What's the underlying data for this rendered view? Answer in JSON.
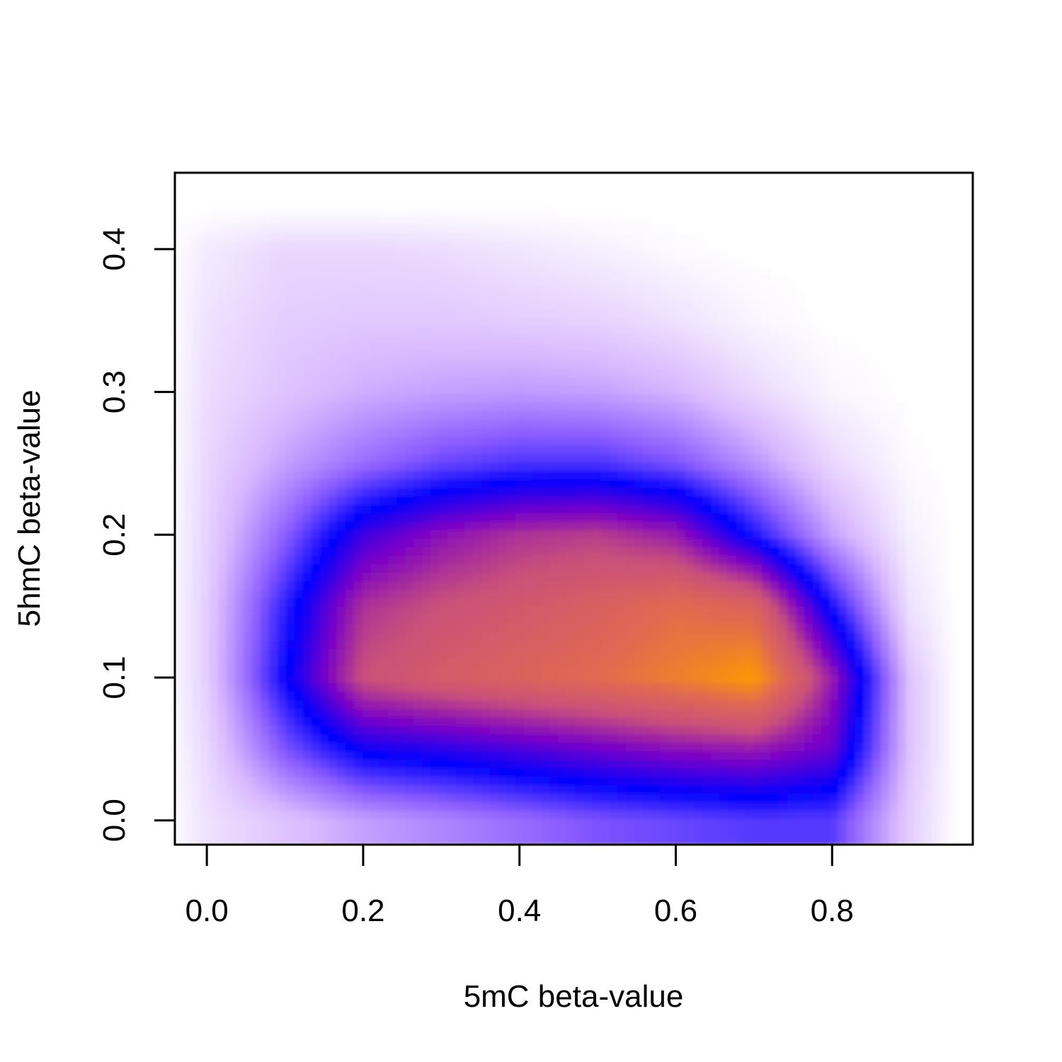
{
  "chart_data": {
    "type": "heatmap",
    "subtype": "2D density (smoothScatter)",
    "title": "",
    "xlabel": "5mC beta-value",
    "ylabel": "5hmC beta-value",
    "xlim": [
      -0.04,
      0.98
    ],
    "ylim": [
      -0.017,
      0.453
    ],
    "x_ticks": [
      0.0,
      0.2,
      0.4,
      0.6,
      0.8
    ],
    "x_tick_labels": [
      "0.0",
      "0.2",
      "0.4",
      "0.6",
      "0.8"
    ],
    "y_ticks": [
      0.0,
      0.1,
      0.2,
      0.3,
      0.4
    ],
    "y_tick_labels": [
      "0.0",
      "0.1",
      "0.2",
      "0.3",
      "0.4"
    ],
    "grid": false,
    "legend": "none",
    "colormap": [
      "#ffffff",
      "#d8b8ff",
      "#8a5cff",
      "#0000ff",
      "#7a00c8",
      "#c9507a",
      "#e06a50",
      "#ff9900"
    ],
    "density_peak": {
      "x": 0.67,
      "y": 0.12
    },
    "density_grid": {
      "x": [
        0.0,
        0.1,
        0.2,
        0.3,
        0.4,
        0.5,
        0.6,
        0.7,
        0.8,
        0.9
      ],
      "y": [
        0.0,
        0.05,
        0.1,
        0.15,
        0.2,
        0.25,
        0.3,
        0.35,
        0.4
      ],
      "z": [
        [
          0.06,
          0.12,
          0.18,
          0.22,
          0.26,
          0.3,
          0.32,
          0.34,
          0.34,
          0.1
        ],
        [
          0.08,
          0.3,
          0.45,
          0.48,
          0.52,
          0.56,
          0.6,
          0.62,
          0.55,
          0.12
        ],
        [
          0.1,
          0.42,
          0.72,
          0.78,
          0.82,
          0.86,
          0.92,
          1.0,
          0.62,
          0.12
        ],
        [
          0.1,
          0.38,
          0.66,
          0.72,
          0.76,
          0.8,
          0.86,
          0.82,
          0.4,
          0.06
        ],
        [
          0.09,
          0.28,
          0.5,
          0.6,
          0.66,
          0.68,
          0.62,
          0.4,
          0.18,
          0.03
        ],
        [
          0.08,
          0.18,
          0.26,
          0.32,
          0.35,
          0.35,
          0.3,
          0.2,
          0.08,
          0.01
        ],
        [
          0.07,
          0.12,
          0.16,
          0.18,
          0.19,
          0.18,
          0.15,
          0.08,
          0.02,
          0.0
        ],
        [
          0.06,
          0.1,
          0.11,
          0.11,
          0.1,
          0.09,
          0.06,
          0.02,
          0.0,
          0.0
        ],
        [
          0.04,
          0.08,
          0.08,
          0.07,
          0.05,
          0.03,
          0.01,
          0.0,
          0.0,
          0.0
        ]
      ]
    }
  }
}
